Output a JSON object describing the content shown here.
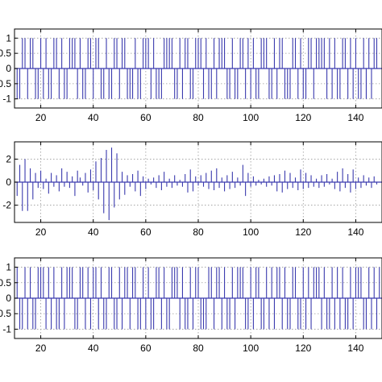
{
  "figure": {
    "colors": {
      "stem": "#3a3aae",
      "axis": "#000000",
      "grid": "#9a9a9a",
      "background": "#ffffff"
    }
  },
  "chart_data": [
    {
      "type": "stem",
      "title": "",
      "xlabel": "",
      "ylabel": "",
      "xlim": [
        10,
        150
      ],
      "ylim": [
        -1.3,
        1.3
      ],
      "grid": true,
      "xticks": [
        20,
        40,
        60,
        80,
        100,
        120,
        140
      ],
      "xtick_labels": [
        "20",
        "40",
        "60",
        "80",
        "100",
        "120",
        "140"
      ],
      "yticks": [
        1,
        0.5,
        0,
        -0.5,
        -1
      ],
      "ytick_labels": [
        "1",
        "0.5",
        "0",
        "-0.5",
        "-1"
      ],
      "x_start": 11,
      "values": [
        -1,
        -1,
        1,
        1,
        -1,
        1,
        1,
        -1,
        -1,
        1,
        -1,
        1,
        -1,
        -1,
        1,
        1,
        -1,
        1,
        -1,
        -1,
        1,
        1,
        1,
        -1,
        1,
        -1,
        -1,
        1,
        1,
        -1,
        1,
        1,
        -1,
        -1,
        1,
        -1,
        -1,
        1,
        1,
        -1,
        1,
        1,
        -1,
        -1,
        -1,
        1,
        -1,
        -1,
        1,
        1,
        1,
        -1,
        1,
        -1,
        -1,
        -1,
        1,
        1,
        1,
        1,
        -1,
        -1,
        1,
        -1,
        1,
        1,
        -1,
        -1,
        1,
        1,
        1,
        -1,
        1,
        -1,
        -1,
        1,
        -1,
        1,
        1,
        1,
        -1,
        -1,
        1,
        -1,
        -1,
        1,
        1,
        -1,
        1,
        -1,
        1,
        -1,
        -1,
        1,
        1,
        1,
        -1,
        -1,
        1,
        -1,
        1,
        1,
        -1,
        -1,
        -1,
        1,
        1,
        -1,
        1,
        -1,
        -1,
        1,
        1,
        -1,
        1,
        1,
        1,
        1,
        -1,
        1,
        -1,
        1,
        -1,
        -1,
        1,
        1,
        -1,
        1,
        -1,
        1,
        -1,
        -1,
        1,
        -1,
        1,
        -1,
        1,
        1
      ]
    },
    {
      "type": "stem",
      "title": "",
      "xlabel": "",
      "ylabel": "",
      "xlim": [
        10,
        150
      ],
      "ylim": [
        -3.5,
        3.5
      ],
      "grid": true,
      "xticks": [
        20,
        40,
        60,
        80,
        100,
        120,
        140
      ],
      "xtick_labels": [
        "20",
        "40",
        "60",
        "80",
        "100",
        "120",
        "140"
      ],
      "yticks": [
        2,
        0,
        -2
      ],
      "ytick_labels": [
        "2",
        "0",
        "-2"
      ],
      "x_start": 11,
      "values": [
        -1.2,
        1.5,
        -2.5,
        2.0,
        -2.5,
        1.2,
        -1.5,
        0.8,
        -0.5,
        1.0,
        -0.6,
        0.3,
        -1.0,
        0.8,
        -0.4,
        0.6,
        -0.8,
        1.2,
        -0.4,
        0.9,
        -0.5,
        0.5,
        -1.2,
        1.0,
        0.4,
        -0.3,
        0.8,
        -0.9,
        1.1,
        -0.7,
        1.8,
        -1.5,
        2.1,
        -2.7,
        2.8,
        -3.3,
        3.0,
        -2.2,
        2.5,
        -1.5,
        0.9,
        -1.1,
        0.6,
        -0.4,
        0.7,
        -0.8,
        1.0,
        -1.2,
        0.5,
        -0.6,
        0.3,
        -0.2,
        0.4,
        -0.5,
        0.6,
        -0.7,
        0.9,
        -0.4,
        0.3,
        -0.5,
        0.6,
        -0.3,
        0.2,
        -0.4,
        0.7,
        -0.9,
        1.1,
        -0.8,
        0.5,
        -0.3,
        0.6,
        -0.4,
        0.8,
        -0.6,
        1.0,
        -0.7,
        1.2,
        -0.5,
        0.4,
        -0.8,
        0.6,
        -0.6,
        0.9,
        -0.5,
        0.4,
        -0.3,
        1.5,
        -1.2,
        0.8,
        -0.4,
        0.5,
        -0.3,
        0.2,
        -0.2,
        0.3,
        -0.4,
        0.5,
        -0.3,
        0.6,
        -0.8,
        0.7,
        -0.9,
        1.0,
        -0.6,
        0.8,
        -0.5,
        0.4,
        -0.7,
        1.1,
        -0.6,
        0.8,
        -0.5,
        0.6,
        -0.4,
        0.3,
        -0.5,
        0.6,
        -0.4,
        0.7,
        -0.2,
        0.3,
        -0.6,
        0.9,
        -0.8,
        1.2,
        -0.5,
        0.7,
        -0.9,
        1.1,
        -0.6,
        0.4,
        -0.5,
        0.6,
        -0.3,
        0.4,
        -0.5,
        0.5,
        -0.2
      ]
    },
    {
      "type": "stem",
      "title": "",
      "xlabel": "",
      "ylabel": "",
      "xlim": [
        10,
        150
      ],
      "ylim": [
        -1.3,
        1.3
      ],
      "grid": true,
      "xticks": [
        20,
        40,
        60,
        80,
        100,
        120,
        140
      ],
      "xtick_labels": [
        "20",
        "40",
        "60",
        "80",
        "100",
        "120",
        "140"
      ],
      "yticks": [
        1,
        0.5,
        0,
        -0.5,
        -1
      ],
      "ytick_labels": [
        "1",
        "0.5",
        "0",
        "-0.5",
        "-1"
      ],
      "x_start": 11,
      "values": [
        1,
        -1,
        -1,
        1,
        -1,
        1,
        -1,
        -1,
        1,
        1,
        1,
        -1,
        1,
        -1,
        1,
        -1,
        -1,
        1,
        -1,
        1,
        1,
        1,
        -1,
        -1,
        1,
        1,
        -1,
        1,
        -1,
        1,
        1,
        -1,
        1,
        -1,
        -1,
        1,
        1,
        -1,
        -1,
        1,
        -1,
        1,
        1,
        -1,
        1,
        1,
        -1,
        -1,
        1,
        -1,
        1,
        -1,
        -1,
        1,
        1,
        -1,
        1,
        -1,
        -1,
        1,
        1,
        1,
        -1,
        1,
        -1,
        -1,
        1,
        -1,
        1,
        1,
        -1,
        -1,
        -1,
        1,
        1,
        -1,
        1,
        1,
        -1,
        1,
        -1,
        -1,
        1,
        -1,
        1,
        1,
        1,
        -1,
        -1,
        1,
        -1,
        1,
        1,
        -1,
        -1,
        1,
        -1,
        1,
        -1,
        1,
        1,
        -1,
        1,
        -1,
        -1,
        1,
        1,
        -1,
        -1,
        1,
        -1,
        1,
        -1,
        1,
        1,
        1,
        -1,
        1,
        -1,
        -1,
        1,
        -1,
        1,
        -1,
        1,
        -1,
        -1,
        1,
        -1,
        1,
        1,
        1,
        -1,
        -1,
        1,
        -1,
        1,
        -1,
        1,
        -1
      ]
    }
  ]
}
